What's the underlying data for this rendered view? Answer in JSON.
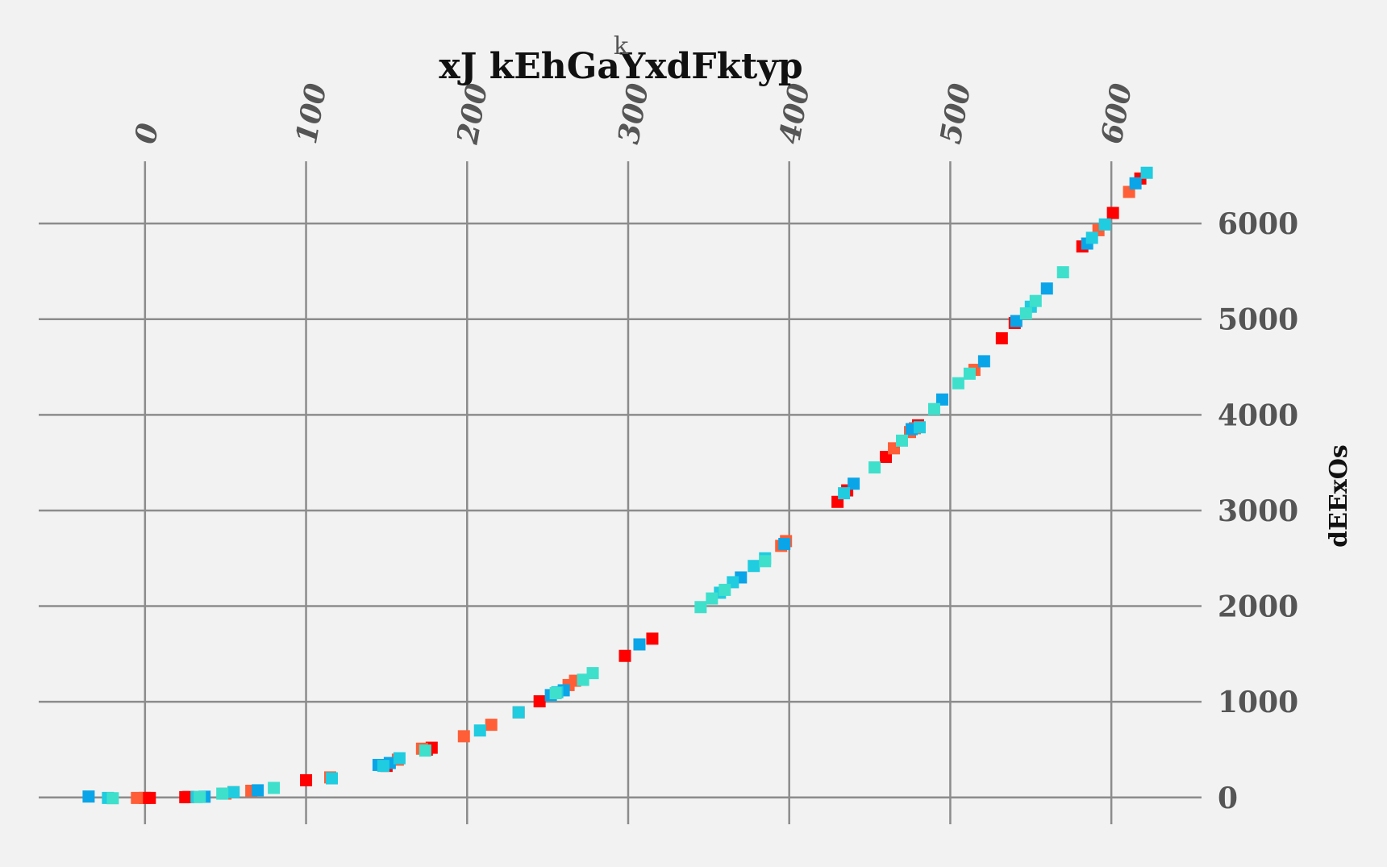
{
  "chart_data": {
    "type": "scatter",
    "title": "xJ kEhGaYxdFktyp",
    "xlabel": "k",
    "ylabel": "dEExOs",
    "xlim": [
      -66,
      656
    ],
    "ylim": [
      -280,
      6650
    ],
    "xticks": [
      0,
      100,
      200,
      300,
      400,
      500,
      600
    ],
    "yticks": [
      0,
      1000,
      2000,
      3000,
      4000,
      5000,
      6000
    ],
    "x_axis_position": "top",
    "y_axis_position": "right",
    "grid": true,
    "legend": "none",
    "marker": "square",
    "series": [
      {
        "color": "#ff0000",
        "points": [
          [
            0,
            -5
          ],
          [
            3,
            -5
          ],
          [
            25,
            3
          ],
          [
            27,
            5
          ],
          [
            100,
            180
          ],
          [
            150,
            330
          ],
          [
            175,
            500
          ],
          [
            178,
            520
          ],
          [
            245,
            1005
          ],
          [
            298,
            1480
          ],
          [
            315,
            1660
          ],
          [
            430,
            3090
          ],
          [
            436,
            3210
          ],
          [
            460,
            3560
          ],
          [
            480,
            3890
          ],
          [
            532,
            4800
          ],
          [
            540,
            4960
          ],
          [
            582,
            5760
          ],
          [
            601,
            6110
          ],
          [
            618,
            6470
          ]
        ]
      },
      {
        "color": "#ff5e36",
        "points": [
          [
            -5,
            -5
          ],
          [
            50,
            40
          ],
          [
            55,
            55
          ],
          [
            66,
            70
          ],
          [
            115,
            210
          ],
          [
            157,
            395
          ],
          [
            172,
            510
          ],
          [
            198,
            640
          ],
          [
            215,
            760
          ],
          [
            232,
            890
          ],
          [
            263,
            1175
          ],
          [
            267,
            1220
          ],
          [
            395,
            2630
          ],
          [
            398,
            2680
          ],
          [
            465,
            3650
          ],
          [
            475,
            3820
          ],
          [
            478,
            3860
          ],
          [
            515,
            4470
          ],
          [
            592,
            5930
          ],
          [
            611,
            6330
          ]
        ]
      },
      {
        "color": "#0aa5e8",
        "points": [
          [
            -35,
            10
          ],
          [
            37,
            8
          ],
          [
            70,
            75
          ],
          [
            145,
            340
          ],
          [
            152,
            360
          ],
          [
            252,
            1070
          ],
          [
            260,
            1120
          ],
          [
            307,
            1600
          ],
          [
            370,
            2300
          ],
          [
            397,
            2650
          ],
          [
            440,
            3280
          ],
          [
            476,
            3850
          ],
          [
            495,
            4160
          ],
          [
            521,
            4560
          ],
          [
            541,
            4980
          ],
          [
            560,
            5320
          ],
          [
            585,
            5790
          ],
          [
            615,
            6420
          ]
        ]
      },
      {
        "color": "#1fcce0",
        "points": [
          [
            -23,
            -5
          ],
          [
            32,
            5
          ],
          [
            55,
            55
          ],
          [
            116,
            200
          ],
          [
            148,
            330
          ],
          [
            158,
            410
          ],
          [
            208,
            700
          ],
          [
            232,
            890
          ],
          [
            256,
            1100
          ],
          [
            272,
            1230
          ],
          [
            357,
            2140
          ],
          [
            365,
            2250
          ],
          [
            378,
            2420
          ],
          [
            385,
            2500
          ],
          [
            434,
            3180
          ],
          [
            481,
            3870
          ],
          [
            550,
            5130
          ],
          [
            588,
            5850
          ],
          [
            596,
            5990
          ],
          [
            622,
            6530
          ]
        ]
      },
      {
        "color": "#3ee0cc",
        "points": [
          [
            -20,
            -8
          ],
          [
            34,
            5
          ],
          [
            48,
            40
          ],
          [
            80,
            100
          ],
          [
            174,
            490
          ],
          [
            255,
            1090
          ],
          [
            272,
            1230
          ],
          [
            278,
            1300
          ],
          [
            345,
            1990
          ],
          [
            352,
            2080
          ],
          [
            360,
            2170
          ],
          [
            385,
            2470
          ],
          [
            453,
            3450
          ],
          [
            470,
            3730
          ],
          [
            490,
            4060
          ],
          [
            505,
            4330
          ],
          [
            512,
            4430
          ],
          [
            547,
            5060
          ],
          [
            553,
            5190
          ],
          [
            570,
            5490
          ]
        ]
      }
    ]
  }
}
